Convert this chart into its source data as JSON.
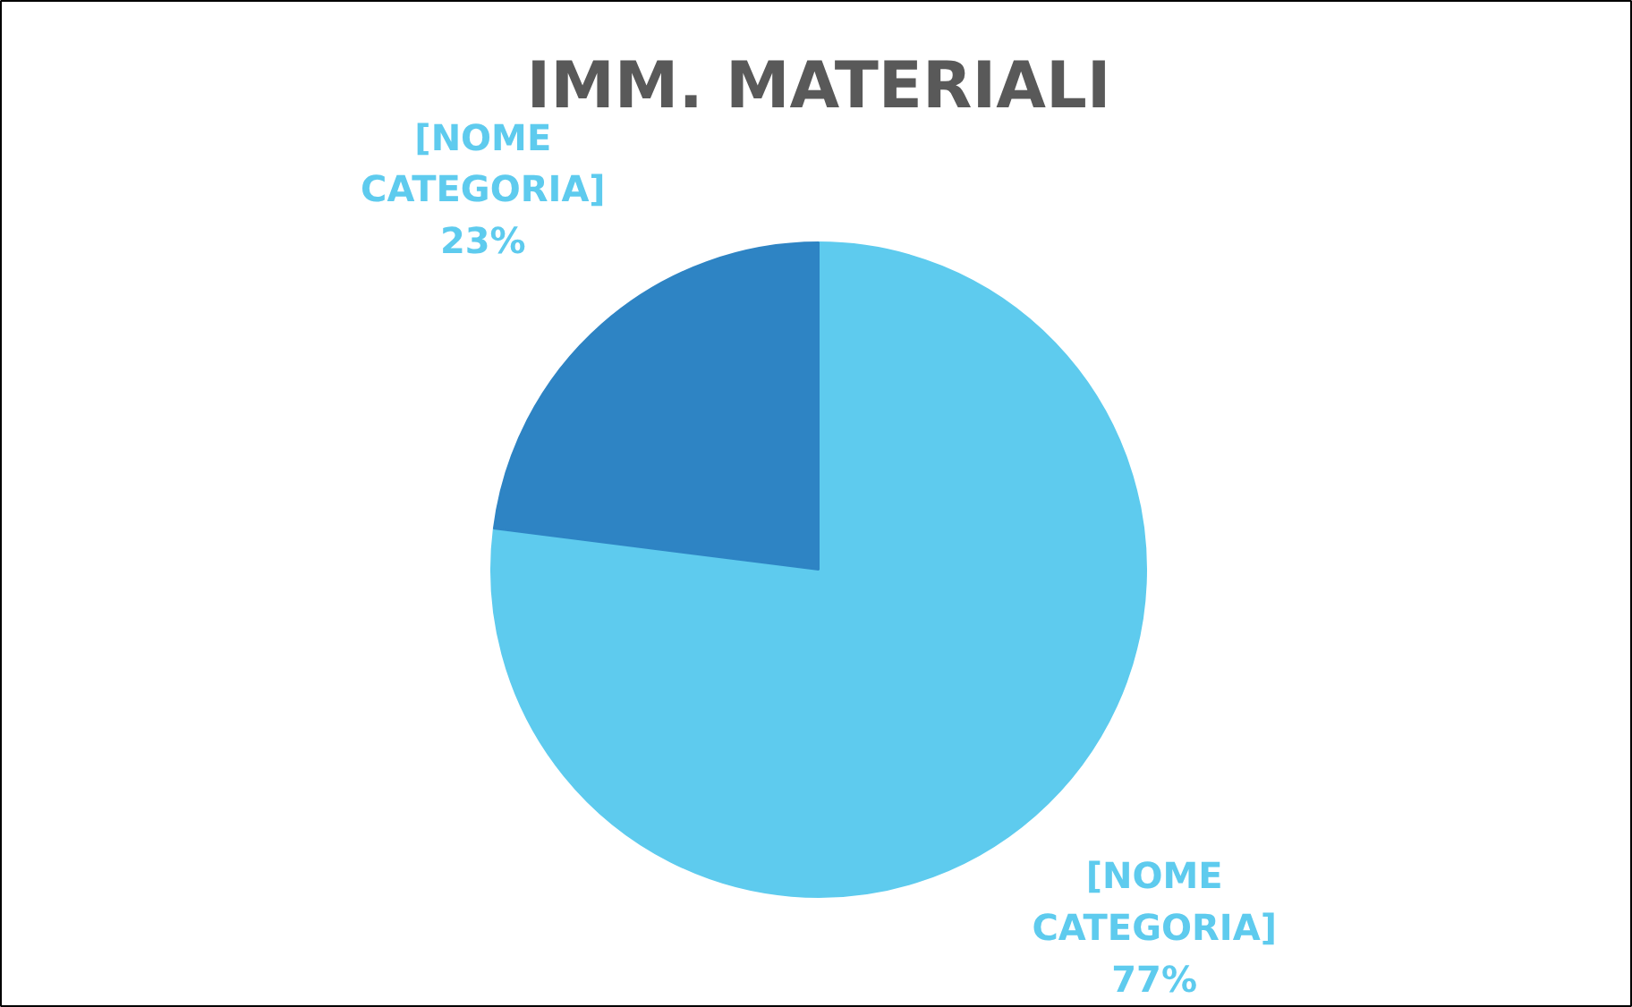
{
  "chart_data": {
    "type": "pie",
    "title": "IMM. MATERIALI",
    "categories": [
      "[NOME CATEGORIA]",
      "[NOME CATEGORIA]"
    ],
    "values": [
      77,
      23
    ],
    "value_labels": [
      "77%",
      "23%"
    ],
    "colors": [
      "#5ecbee",
      "#2e84c4"
    ]
  }
}
